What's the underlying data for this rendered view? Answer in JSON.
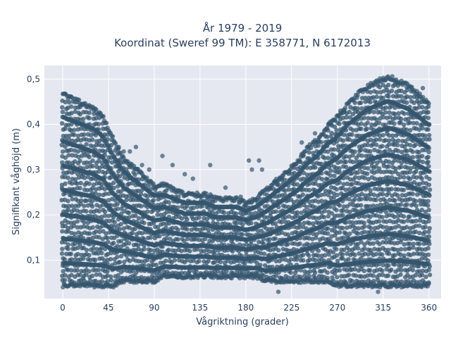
{
  "chart_data": {
    "type": "scatter",
    "title_line1": "År 1979 - 2019",
    "title_line2": "Koordinat (Sweref 99 TM): E 358771, N 6172013",
    "xlabel": "Vågriktning (grader)",
    "ylabel": "Signifikant våghöjd (m)",
    "xlim": [
      -18,
      372
    ],
    "ylim": [
      0.015,
      0.53
    ],
    "xticks": [
      0,
      45,
      90,
      135,
      180,
      225,
      270,
      315,
      360
    ],
    "xtick_labels": [
      "0",
      "45",
      "90",
      "135",
      "180",
      "225",
      "270",
      "315",
      "360"
    ],
    "yticks": [
      0.1,
      0.2,
      0.3,
      0.4,
      0.5
    ],
    "ytick_labels": [
      "0,1",
      "0,2",
      "0,3",
      "0,4",
      "0,5"
    ],
    "grid": true,
    "marker_color": "#34566d",
    "background_color": "#e5e8f0",
    "envelope": {
      "directions": [
        0,
        10,
        20,
        30,
        40,
        50,
        60,
        70,
        80,
        90,
        100,
        110,
        120,
        130,
        140,
        150,
        160,
        170,
        180,
        190,
        200,
        210,
        220,
        230,
        240,
        250,
        260,
        270,
        280,
        290,
        300,
        310,
        320,
        330,
        340,
        350,
        360
      ],
      "max_height": [
        0.47,
        0.46,
        0.45,
        0.44,
        0.42,
        0.37,
        0.33,
        0.31,
        0.29,
        0.27,
        0.27,
        0.26,
        0.25,
        0.25,
        0.25,
        0.24,
        0.24,
        0.24,
        0.23,
        0.24,
        0.26,
        0.28,
        0.3,
        0.32,
        0.35,
        0.37,
        0.4,
        0.42,
        0.45,
        0.47,
        0.49,
        0.5,
        0.51,
        0.5,
        0.49,
        0.47,
        0.45
      ],
      "min_height": [
        0.04,
        0.04,
        0.04,
        0.04,
        0.04,
        0.04,
        0.05,
        0.05,
        0.05,
        0.05,
        0.06,
        0.06,
        0.06,
        0.06,
        0.06,
        0.06,
        0.06,
        0.06,
        0.06,
        0.06,
        0.05,
        0.05,
        0.05,
        0.05,
        0.05,
        0.05,
        0.05,
        0.04,
        0.04,
        0.04,
        0.04,
        0.04,
        0.04,
        0.04,
        0.04,
        0.04,
        0.04
      ]
    },
    "outliers": [
      {
        "x": 55,
        "y": 0.35
      },
      {
        "x": 60,
        "y": 0.34
      },
      {
        "x": 66,
        "y": 0.34
      },
      {
        "x": 72,
        "y": 0.35
      },
      {
        "x": 78,
        "y": 0.31
      },
      {
        "x": 85,
        "y": 0.3
      },
      {
        "x": 98,
        "y": 0.33
      },
      {
        "x": 108,
        "y": 0.31
      },
      {
        "x": 120,
        "y": 0.29
      },
      {
        "x": 128,
        "y": 0.28
      },
      {
        "x": 145,
        "y": 0.31
      },
      {
        "x": 160,
        "y": 0.26
      },
      {
        "x": 175,
        "y": 0.24
      },
      {
        "x": 183,
        "y": 0.32
      },
      {
        "x": 186,
        "y": 0.3
      },
      {
        "x": 193,
        "y": 0.32
      },
      {
        "x": 196,
        "y": 0.3
      },
      {
        "x": 210,
        "y": 0.27
      },
      {
        "x": 212,
        "y": 0.03
      },
      {
        "x": 235,
        "y": 0.36
      },
      {
        "x": 248,
        "y": 0.38
      },
      {
        "x": 262,
        "y": 0.4
      },
      {
        "x": 273,
        "y": 0.43
      },
      {
        "x": 20,
        "y": 0.06
      },
      {
        "x": 310,
        "y": 0.03
      },
      {
        "x": 354,
        "y": 0.48
      }
    ]
  }
}
